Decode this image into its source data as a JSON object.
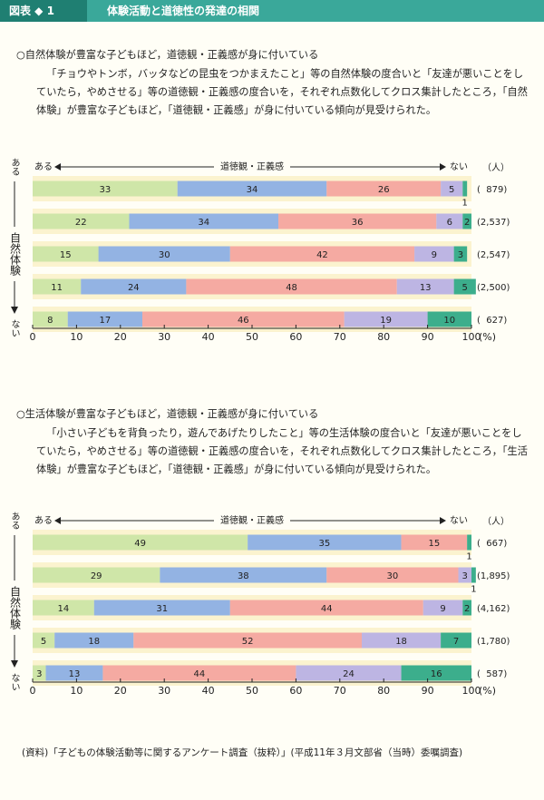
{
  "header": {
    "label": "図表 ◆ 1",
    "title": "体験活動と道徳性の発達の相関"
  },
  "chart_data": [
    {
      "type": "bar",
      "orientation": "horizontal",
      "stacked": true,
      "title": "○自然体験が豊富な子どもほど，道徳観・正義感が身に付いている",
      "description": "「チョウやトンボ，バッタなどの昆虫をつかまえたこと」等の自然体験の度合いと「友達が悪いことをしていたら，やめさせる」等の道徳観・正義感の度合いを，それぞれ点数化してクロス集計したところ，「自然体験」が豊富な子どもほど，「道徳観・正義感」が身に付いている傾向が見受けられた。",
      "scale_start": "ある",
      "scale_label": "道徳観・正義感",
      "scale_end": "ない",
      "count_unit": "（人）",
      "row_axis_start": "ある",
      "row_axis_label": "自然体験",
      "row_axis_end": "ない",
      "categories": [
        "(  879)",
        "(2,537)",
        "(2,547)",
        "(2,500)",
        "(  627)"
      ],
      "series": [
        {
          "color": "#cfe6a8",
          "values": [
            33,
            22,
            15,
            11,
            8
          ]
        },
        {
          "color": "#93b3e3",
          "values": [
            34,
            34,
            30,
            24,
            17
          ]
        },
        {
          "color": "#f5aaa2",
          "values": [
            26,
            36,
            42,
            48,
            46
          ]
        },
        {
          "color": "#bdb5e3",
          "values": [
            5,
            6,
            9,
            13,
            19
          ]
        },
        {
          "color": "#3cae8c",
          "values": [
            1,
            2,
            3,
            5,
            10
          ]
        }
      ],
      "xlim": [
        0,
        100
      ],
      "xticks": [
        0,
        10,
        20,
        30,
        40,
        50,
        60,
        70,
        80,
        90,
        100
      ],
      "x_unit": "(%)"
    },
    {
      "type": "bar",
      "orientation": "horizontal",
      "stacked": true,
      "title": "○生活体験が豊富な子どもほど，道徳観・正義感が身に付いている",
      "description": "「小さい子どもを背負ったり，遊んであげたりしたこと」等の生活体験の度合いと「友達が悪いことをしていたら，やめさせる」等の道徳観・正義感の度合いを，それぞれ点数化してクロス集計したところ，「生活体験」が豊富な子どもほど，「道徳観・正義感」が身に付いている傾向が見受けられた。",
      "scale_start": "ある",
      "scale_label": "道徳観・正義感",
      "scale_end": "ない",
      "count_unit": "（人）",
      "row_axis_start": "ある",
      "row_axis_label": "自然体験",
      "row_axis_end": "ない",
      "categories": [
        "(  667)",
        "(1,895)",
        "(4,162)",
        "(1,780)",
        "(  587)"
      ],
      "series": [
        {
          "color": "#cfe6a8",
          "values": [
            49,
            29,
            14,
            5,
            3
          ]
        },
        {
          "color": "#93b3e3",
          "values": [
            35,
            38,
            31,
            18,
            13
          ]
        },
        {
          "color": "#f5aaa2",
          "values": [
            15,
            30,
            44,
            52,
            44
          ]
        },
        {
          "color": "#bdb5e3",
          "values": [
            null,
            3,
            9,
            18,
            24
          ]
        },
        {
          "color": "#3cae8c",
          "values": [
            1,
            1,
            2,
            7,
            16
          ]
        }
      ],
      "xlim": [
        0,
        100
      ],
      "xticks": [
        0,
        10,
        20,
        30,
        40,
        50,
        60,
        70,
        80,
        90,
        100
      ],
      "x_unit": "(%)"
    }
  ],
  "source": "(資料)「子どもの体験活動等に関するアンケート調査（抜粋）」(平成11年３月文部省（当時）委嘱調査)"
}
